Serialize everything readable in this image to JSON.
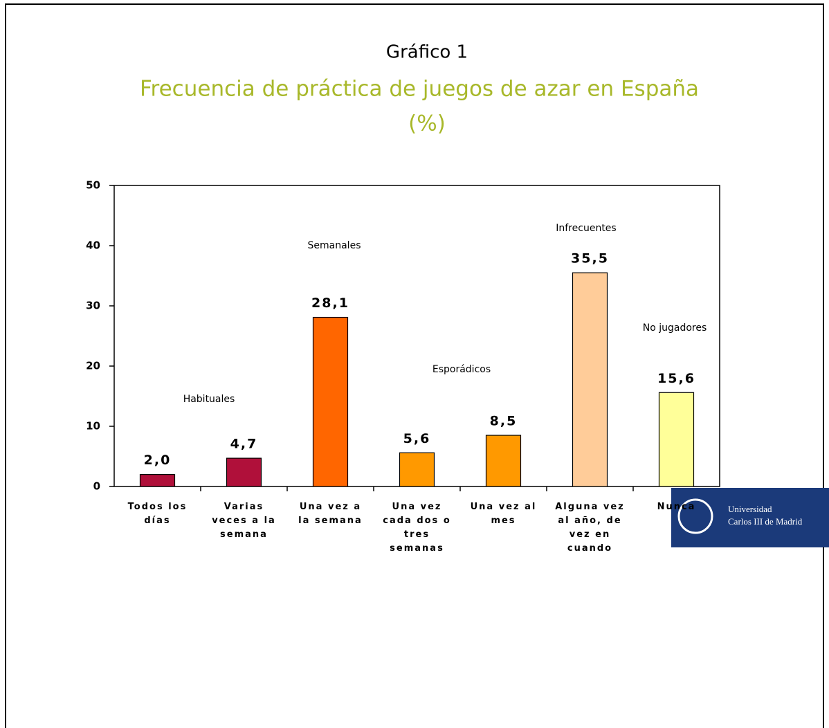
{
  "chart_data": {
    "type": "bar",
    "title": "Gráfico 1",
    "subtitle_lines": [
      "Frecuencia de práctica de juegos de azar en España",
      "(%)"
    ],
    "categories": [
      "Todos los días",
      "Varias veces a la semana",
      "Una vez a la semana",
      "Una vez cada dos o tres semanas",
      "Una vez al mes",
      "Alguna vez al año, de vez en cuando",
      "Nunca"
    ],
    "values": [
      2.0,
      4.7,
      28.1,
      5.6,
      8.5,
      35.5,
      15.6
    ],
    "value_labels": [
      "2,0",
      "4,7",
      "28,1",
      "5,6",
      "8,5",
      "35,5",
      "15,6"
    ],
    "colors": [
      "#b0103a",
      "#b0103a",
      "#ff6600",
      "#ff9900",
      "#ff9900",
      "#ffcc99",
      "#ffff99"
    ],
    "annotations": [
      "Habituales",
      "Semanales",
      "Esporádicos",
      "Infrecuentes",
      "No jugadores"
    ],
    "ylim": [
      0,
      50
    ],
    "yticks": [
      0,
      10,
      20,
      30,
      40,
      50
    ]
  },
  "logo": [
    "Universidad",
    "Carlos III de Madrid"
  ]
}
